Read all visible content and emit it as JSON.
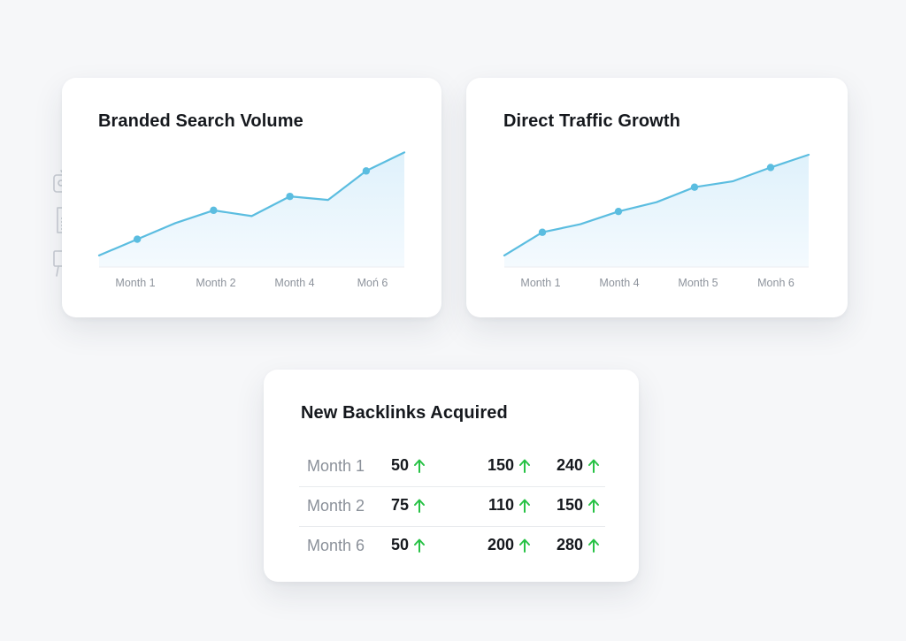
{
  "colors": {
    "line": "#5bbde0",
    "area_top": "#dff1fb",
    "area_bottom": "#f4fafe",
    "arrow": "#27c245",
    "icon": "#c6cbd2"
  },
  "side_icons": [
    "tv-icon",
    "document-icon",
    "presentation-board-icon"
  ],
  "chart_data": [
    {
      "type": "area",
      "title": "Branded Search Volume",
      "xlabel": "",
      "ylabel": "",
      "tick_labels": [
        "Month 1",
        "Month 2",
        "Month 4",
        "Moń 6"
      ],
      "x": [
        0,
        1,
        2,
        3,
        4,
        5,
        6,
        7,
        8
      ],
      "values": [
        10,
        24,
        38,
        49,
        44,
        61,
        58,
        83,
        99
      ],
      "markers": [
        1,
        3,
        5,
        7
      ],
      "ylim": [
        0,
        110
      ],
      "grid": false
    },
    {
      "type": "area",
      "title": "Direct Traffic Growth",
      "xlabel": "",
      "ylabel": "",
      "tick_labels": [
        "Month 1",
        "Month 4",
        "Month 5",
        "Monh 6"
      ],
      "x": [
        0,
        1,
        2,
        3,
        4,
        5,
        6,
        7,
        8
      ],
      "values": [
        10,
        30,
        37,
        48,
        56,
        69,
        74,
        86,
        97
      ],
      "markers": [
        1,
        3,
        5,
        7
      ],
      "ylim": [
        0,
        110
      ],
      "grid": false
    },
    {
      "type": "table",
      "title": "New Backlinks Acquired",
      "rows": [
        {
          "label": "Month 1",
          "values": [
            50,
            150,
            240
          ]
        },
        {
          "label": "Month 2",
          "values": [
            75,
            110,
            150
          ]
        },
        {
          "label": "Month 6",
          "values": [
            50,
            200,
            280
          ]
        }
      ]
    }
  ]
}
